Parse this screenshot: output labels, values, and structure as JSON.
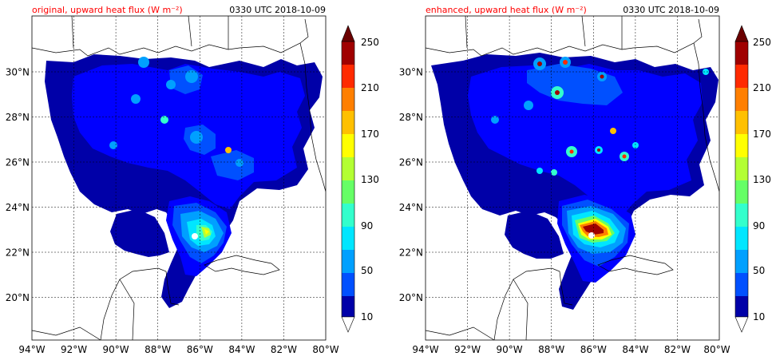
{
  "chart_data": [
    {
      "type": "heatmap",
      "title": "original, upward heat flux (W m⁻²)",
      "timestamp": "0330 UTC 2018-10-09",
      "x_ticks": [
        "94°W",
        "92°W",
        "90°W",
        "88°W",
        "86°W",
        "84°W",
        "82°W",
        "80°W"
      ],
      "y_ticks": [
        "20°N",
        "22°N",
        "24°N",
        "26°N",
        "28°N",
        "30°N"
      ],
      "xlim": [
        -94,
        -80
      ],
      "ylim": [
        18.2,
        32.1
      ],
      "grid": true,
      "colorbar": {
        "levels": [
          10,
          30,
          50,
          70,
          90,
          110,
          130,
          150,
          170,
          190,
          210,
          230,
          250
        ],
        "tick_labels": [
          "10",
          "50",
          "90",
          "130",
          "170",
          "210",
          "250"
        ],
        "extend": "both"
      },
      "cyclone_center": {
        "lon": -86.4,
        "lat": 22.8
      },
      "peak_flux_approx": 170
    },
    {
      "type": "heatmap",
      "title": "enhanced, upward heat flux (W m⁻²)",
      "timestamp": "0330 UTC 2018-10-09",
      "x_ticks": [
        "94°W",
        "92°W",
        "90°W",
        "88°W",
        "86°W",
        "84°W",
        "82°W",
        "80°W"
      ],
      "y_ticks": [
        "20°N",
        "22°N",
        "24°N",
        "26°N",
        "28°N",
        "30°N"
      ],
      "xlim": [
        -94,
        -80
      ],
      "ylim": [
        18.2,
        32.1
      ],
      "grid": true,
      "colorbar": {
        "levels": [
          10,
          30,
          50,
          70,
          90,
          110,
          130,
          150,
          170,
          190,
          210,
          230,
          250
        ],
        "tick_labels": [
          "10",
          "50",
          "90",
          "130",
          "170",
          "210",
          "250"
        ],
        "extend": "both"
      },
      "cyclone_center": {
        "lon": -86.4,
        "lat": 22.8
      },
      "peak_flux_approx": 250
    }
  ],
  "colors": {
    "levels": [
      "#0000a8",
      "#0000ff",
      "#0050ff",
      "#00a0ff",
      "#00e6ff",
      "#33ffcc",
      "#66ff66",
      "#b3ff33",
      "#ffff00",
      "#ffc000",
      "#ff7f00",
      "#ff2a00",
      "#a00000"
    ],
    "over": "#6b0000",
    "under": "#ffffff",
    "title_color": "#ff0000"
  }
}
